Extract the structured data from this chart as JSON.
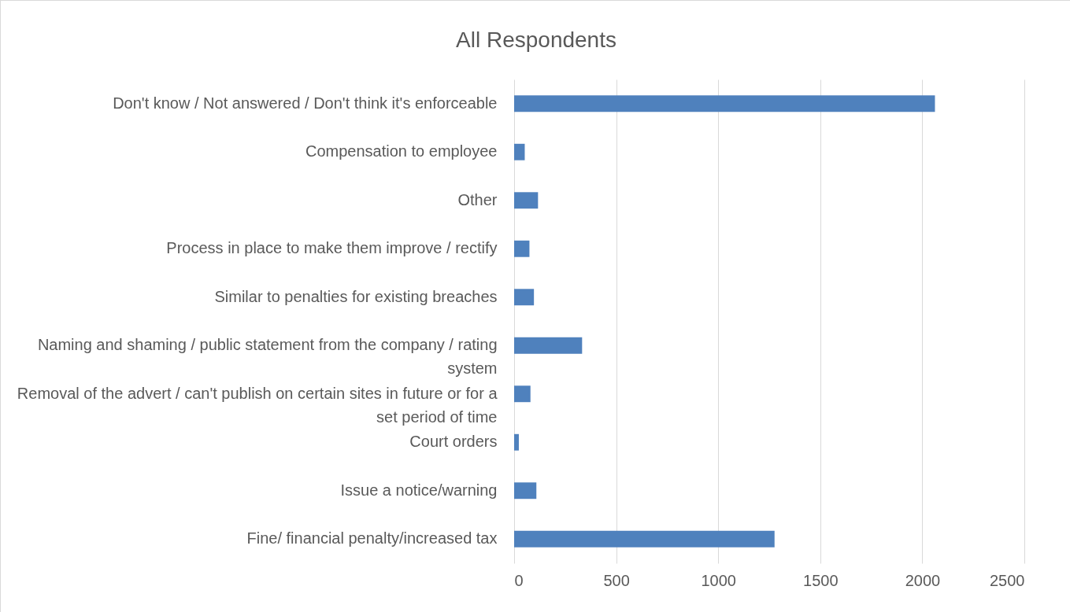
{
  "chart_data": {
    "type": "bar",
    "orientation": "horizontal",
    "title": "All Respondents",
    "categories": [
      "Don't know / Not answered / Don't think it's enforceable",
      "Compensation to employee",
      "Other",
      "Process in place to make them improve / rectify",
      "Similar to penalties for existing breaches",
      "Naming and shaming / public statement from the company / rating system",
      "Removal of the advert / can't publish on certain sites in future or for a set period of time",
      "Court orders",
      "Issue a notice/warning",
      "Fine/ financial penalty/increased tax"
    ],
    "values": [
      2062,
      52,
      117,
      75,
      97,
      333,
      80,
      23,
      109,
      1276
    ],
    "color": "#4f81bd",
    "xlim": [
      0,
      2500
    ],
    "xticks": [
      0,
      500,
      1000,
      1500,
      2000,
      2500
    ],
    "grid": "x"
  }
}
